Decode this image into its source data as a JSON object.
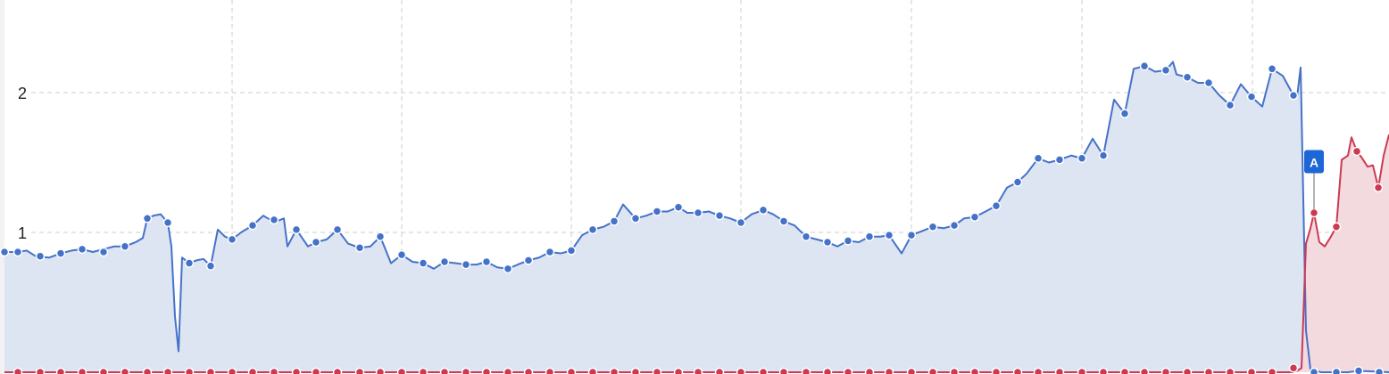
{
  "chart_data": {
    "type": "line",
    "title": "",
    "xlabel": "",
    "ylabel": "",
    "ylim": [
      0,
      2.65
    ],
    "xlim": [
      0,
      1556
    ],
    "yticks": [
      {
        "value": 1,
        "label": "1"
      },
      {
        "value": 2,
        "label": "2"
      }
    ],
    "x_gridlines": [
      260,
      450,
      640,
      830,
      1021,
      1212,
      1403
    ],
    "grid": true,
    "legend": "none",
    "colors": {
      "series_a_line": "#4572c9",
      "series_a_fill": "#dde4f2",
      "series_b_line": "#cc3a52",
      "series_b_fill": "#f3dadf",
      "grid": "#cccccc",
      "annotation": "#1c66d6"
    },
    "series": [
      {
        "key": "a",
        "points": [
          [
            5,
            0.86
          ],
          [
            20,
            0.86
          ],
          [
            30,
            0.87
          ],
          [
            40,
            0.83
          ],
          [
            55,
            0.82
          ],
          [
            68,
            0.85
          ],
          [
            80,
            0.87
          ],
          [
            92,
            0.88
          ],
          [
            104,
            0.86
          ],
          [
            116,
            0.88
          ],
          [
            128,
            0.9
          ],
          [
            140,
            0.9
          ],
          [
            152,
            0.93
          ],
          [
            160,
            0.96
          ],
          [
            165,
            1.1
          ],
          [
            172,
            1.12
          ],
          [
            180,
            1.13
          ],
          [
            188,
            1.07
          ],
          [
            192,
            0.9
          ],
          [
            196,
            0.4
          ],
          [
            200,
            0.15
          ],
          [
            204,
            0.82
          ],
          [
            212,
            0.78
          ],
          [
            220,
            0.8
          ],
          [
            228,
            0.81
          ],
          [
            236,
            0.76
          ],
          [
            244,
            1.02
          ],
          [
            252,
            0.97
          ],
          [
            260,
            0.95
          ],
          [
            270,
            1.0
          ],
          [
            283,
            1.05
          ],
          [
            295,
            1.12
          ],
          [
            300,
            1.1
          ],
          [
            310,
            1.08
          ],
          [
            318,
            1.1
          ],
          [
            322,
            0.9
          ],
          [
            332,
            1.02
          ],
          [
            345,
            0.9
          ],
          [
            354,
            0.93
          ],
          [
            366,
            0.95
          ],
          [
            378,
            1.02
          ],
          [
            390,
            0.92
          ],
          [
            403,
            0.89
          ],
          [
            415,
            0.9
          ],
          [
            426,
            0.97
          ],
          [
            438,
            0.78
          ],
          [
            450,
            0.84
          ],
          [
            462,
            0.79
          ],
          [
            474,
            0.78
          ],
          [
            486,
            0.74
          ],
          [
            498,
            0.79
          ],
          [
            510,
            0.78
          ],
          [
            522,
            0.77
          ],
          [
            534,
            0.77
          ],
          [
            545,
            0.79
          ],
          [
            557,
            0.75
          ],
          [
            569,
            0.74
          ],
          [
            580,
            0.77
          ],
          [
            592,
            0.8
          ],
          [
            604,
            0.82
          ],
          [
            616,
            0.86
          ],
          [
            628,
            0.85
          ],
          [
            640,
            0.87
          ],
          [
            652,
            0.98
          ],
          [
            664,
            1.02
          ],
          [
            676,
            1.04
          ],
          [
            688,
            1.08
          ],
          [
            698,
            1.2
          ],
          [
            712,
            1.1
          ],
          [
            724,
            1.12
          ],
          [
            736,
            1.15
          ],
          [
            748,
            1.15
          ],
          [
            760,
            1.18
          ],
          [
            770,
            1.14
          ],
          [
            782,
            1.14
          ],
          [
            794,
            1.15
          ],
          [
            806,
            1.12
          ],
          [
            818,
            1.1
          ],
          [
            830,
            1.07
          ],
          [
            842,
            1.13
          ],
          [
            855,
            1.16
          ],
          [
            866,
            1.13
          ],
          [
            878,
            1.08
          ],
          [
            890,
            1.05
          ],
          [
            903,
            0.97
          ],
          [
            915,
            0.95
          ],
          [
            927,
            0.93
          ],
          [
            938,
            0.9
          ],
          [
            950,
            0.94
          ],
          [
            962,
            0.93
          ],
          [
            974,
            0.97
          ],
          [
            986,
            0.97
          ],
          [
            996,
            0.98
          ],
          [
            1010,
            0.85
          ],
          [
            1021,
            0.98
          ],
          [
            1033,
            1.01
          ],
          [
            1045,
            1.04
          ],
          [
            1057,
            1.03
          ],
          [
            1069,
            1.05
          ],
          [
            1080,
            1.1
          ],
          [
            1092,
            1.11
          ],
          [
            1104,
            1.15
          ],
          [
            1116,
            1.19
          ],
          [
            1128,
            1.32
          ],
          [
            1140,
            1.36
          ],
          [
            1150,
            1.42
          ],
          [
            1163,
            1.53
          ],
          [
            1175,
            1.5
          ],
          [
            1187,
            1.52
          ],
          [
            1200,
            1.55
          ],
          [
            1212,
            1.53
          ],
          [
            1224,
            1.67
          ],
          [
            1236,
            1.55
          ],
          [
            1248,
            1.95
          ],
          [
            1260,
            1.85
          ],
          [
            1270,
            2.17
          ],
          [
            1282,
            2.19
          ],
          [
            1294,
            2.15
          ],
          [
            1306,
            2.16
          ],
          [
            1314,
            2.22
          ],
          [
            1318,
            2.13
          ],
          [
            1330,
            2.11
          ],
          [
            1342,
            2.07
          ],
          [
            1354,
            2.07
          ],
          [
            1366,
            1.98
          ],
          [
            1378,
            1.91
          ],
          [
            1390,
            2.06
          ],
          [
            1402,
            1.97
          ],
          [
            1414,
            1.9
          ],
          [
            1425,
            2.17
          ],
          [
            1437,
            2.12
          ],
          [
            1449,
            1.98
          ],
          [
            1453,
            1.97
          ],
          [
            1457,
            2.18
          ],
          [
            1463,
            0.3
          ],
          [
            1468,
            0.02
          ],
          [
            1480,
            0.0
          ],
          [
            1495,
            0.0
          ],
          [
            1510,
            0.0
          ],
          [
            1522,
            0.01
          ],
          [
            1556,
            0.0
          ]
        ],
        "markers": [
          [
            5,
            0.86
          ],
          [
            20,
            0.86
          ],
          [
            45,
            0.83
          ],
          [
            68,
            0.85
          ],
          [
            92,
            0.88
          ],
          [
            116,
            0.86
          ],
          [
            140,
            0.9
          ],
          [
            165,
            1.1
          ],
          [
            188,
            1.07
          ],
          [
            212,
            0.78
          ],
          [
            236,
            0.76
          ],
          [
            260,
            0.95
          ],
          [
            283,
            1.05
          ],
          [
            307,
            1.09
          ],
          [
            332,
            1.02
          ],
          [
            354,
            0.93
          ],
          [
            378,
            1.02
          ],
          [
            403,
            0.89
          ],
          [
            426,
            0.97
          ],
          [
            450,
            0.84
          ],
          [
            474,
            0.78
          ],
          [
            498,
            0.79
          ],
          [
            522,
            0.77
          ],
          [
            545,
            0.79
          ],
          [
            569,
            0.74
          ],
          [
            592,
            0.8
          ],
          [
            616,
            0.86
          ],
          [
            640,
            0.87
          ],
          [
            664,
            1.02
          ],
          [
            688,
            1.08
          ],
          [
            712,
            1.1
          ],
          [
            736,
            1.15
          ],
          [
            760,
            1.18
          ],
          [
            782,
            1.14
          ],
          [
            806,
            1.12
          ],
          [
            830,
            1.07
          ],
          [
            855,
            1.16
          ],
          [
            878,
            1.08
          ],
          [
            903,
            0.97
          ],
          [
            927,
            0.93
          ],
          [
            950,
            0.94
          ],
          [
            974,
            0.97
          ],
          [
            996,
            0.98
          ],
          [
            1021,
            0.98
          ],
          [
            1045,
            1.04
          ],
          [
            1069,
            1.05
          ],
          [
            1092,
            1.11
          ],
          [
            1116,
            1.19
          ],
          [
            1140,
            1.36
          ],
          [
            1163,
            1.53
          ],
          [
            1187,
            1.52
          ],
          [
            1212,
            1.53
          ],
          [
            1236,
            1.55
          ],
          [
            1260,
            1.85
          ],
          [
            1282,
            2.19
          ],
          [
            1306,
            2.16
          ],
          [
            1330,
            2.11
          ],
          [
            1354,
            2.07
          ],
          [
            1378,
            1.91
          ],
          [
            1402,
            1.97
          ],
          [
            1425,
            2.17
          ],
          [
            1449,
            1.98
          ],
          [
            1472,
            0.0
          ],
          [
            1497,
            0.0
          ],
          [
            1522,
            0.01
          ],
          [
            1545,
            0.0
          ]
        ]
      },
      {
        "key": "b",
        "points": [
          [
            5,
            0.0
          ],
          [
            1448,
            0.0
          ],
          [
            1453,
            0.01
          ],
          [
            1458,
            0.03
          ],
          [
            1463,
            0.92
          ],
          [
            1468,
            1.03
          ],
          [
            1472,
            1.14
          ],
          [
            1478,
            0.93
          ],
          [
            1484,
            0.9
          ],
          [
            1490,
            0.96
          ],
          [
            1497,
            1.04
          ],
          [
            1503,
            1.52
          ],
          [
            1510,
            1.55
          ],
          [
            1514,
            1.68
          ],
          [
            1520,
            1.58
          ],
          [
            1526,
            1.53
          ],
          [
            1532,
            1.47
          ],
          [
            1538,
            1.48
          ],
          [
            1544,
            1.32
          ],
          [
            1550,
            1.55
          ],
          [
            1556,
            1.7
          ]
        ],
        "markers": [
          [
            20,
            0.0
          ],
          [
            45,
            0.0
          ],
          [
            68,
            0.0
          ],
          [
            92,
            0.0
          ],
          [
            116,
            0.0
          ],
          [
            140,
            0.0
          ],
          [
            165,
            0.0
          ],
          [
            188,
            0.0
          ],
          [
            212,
            0.0
          ],
          [
            236,
            0.0
          ],
          [
            260,
            0.0
          ],
          [
            283,
            0.0
          ],
          [
            307,
            0.0
          ],
          [
            332,
            0.0
          ],
          [
            354,
            0.0
          ],
          [
            378,
            0.0
          ],
          [
            403,
            0.0
          ],
          [
            426,
            0.0
          ],
          [
            450,
            0.0
          ],
          [
            474,
            0.0
          ],
          [
            498,
            0.0
          ],
          [
            522,
            0.0
          ],
          [
            545,
            0.0
          ],
          [
            569,
            0.0
          ],
          [
            592,
            0.0
          ],
          [
            616,
            0.0
          ],
          [
            640,
            0.0
          ],
          [
            664,
            0.0
          ],
          [
            688,
            0.0
          ],
          [
            712,
            0.0
          ],
          [
            736,
            0.0
          ],
          [
            760,
            0.0
          ],
          [
            782,
            0.0
          ],
          [
            806,
            0.0
          ],
          [
            830,
            0.0
          ],
          [
            855,
            0.0
          ],
          [
            878,
            0.0
          ],
          [
            903,
            0.0
          ],
          [
            927,
            0.0
          ],
          [
            950,
            0.0
          ],
          [
            974,
            0.0
          ],
          [
            996,
            0.0
          ],
          [
            1021,
            0.0
          ],
          [
            1045,
            0.0
          ],
          [
            1069,
            0.0
          ],
          [
            1092,
            0.0
          ],
          [
            1116,
            0.0
          ],
          [
            1140,
            0.0
          ],
          [
            1163,
            0.0
          ],
          [
            1187,
            0.0
          ],
          [
            1212,
            0.0
          ],
          [
            1236,
            0.0
          ],
          [
            1260,
            0.0
          ],
          [
            1282,
            0.0
          ],
          [
            1306,
            0.0
          ],
          [
            1330,
            0.0
          ],
          [
            1354,
            0.0
          ],
          [
            1378,
            0.0
          ],
          [
            1402,
            0.0
          ],
          [
            1425,
            0.0
          ],
          [
            1449,
            0.03
          ],
          [
            1472,
            1.14
          ],
          [
            1497,
            1.04
          ],
          [
            1520,
            1.58
          ],
          [
            1544,
            1.32
          ]
        ]
      }
    ],
    "annotations": [
      {
        "label": "A",
        "x": 1472,
        "anchor_value": 1.14,
        "flag_value": 1.5
      }
    ]
  }
}
